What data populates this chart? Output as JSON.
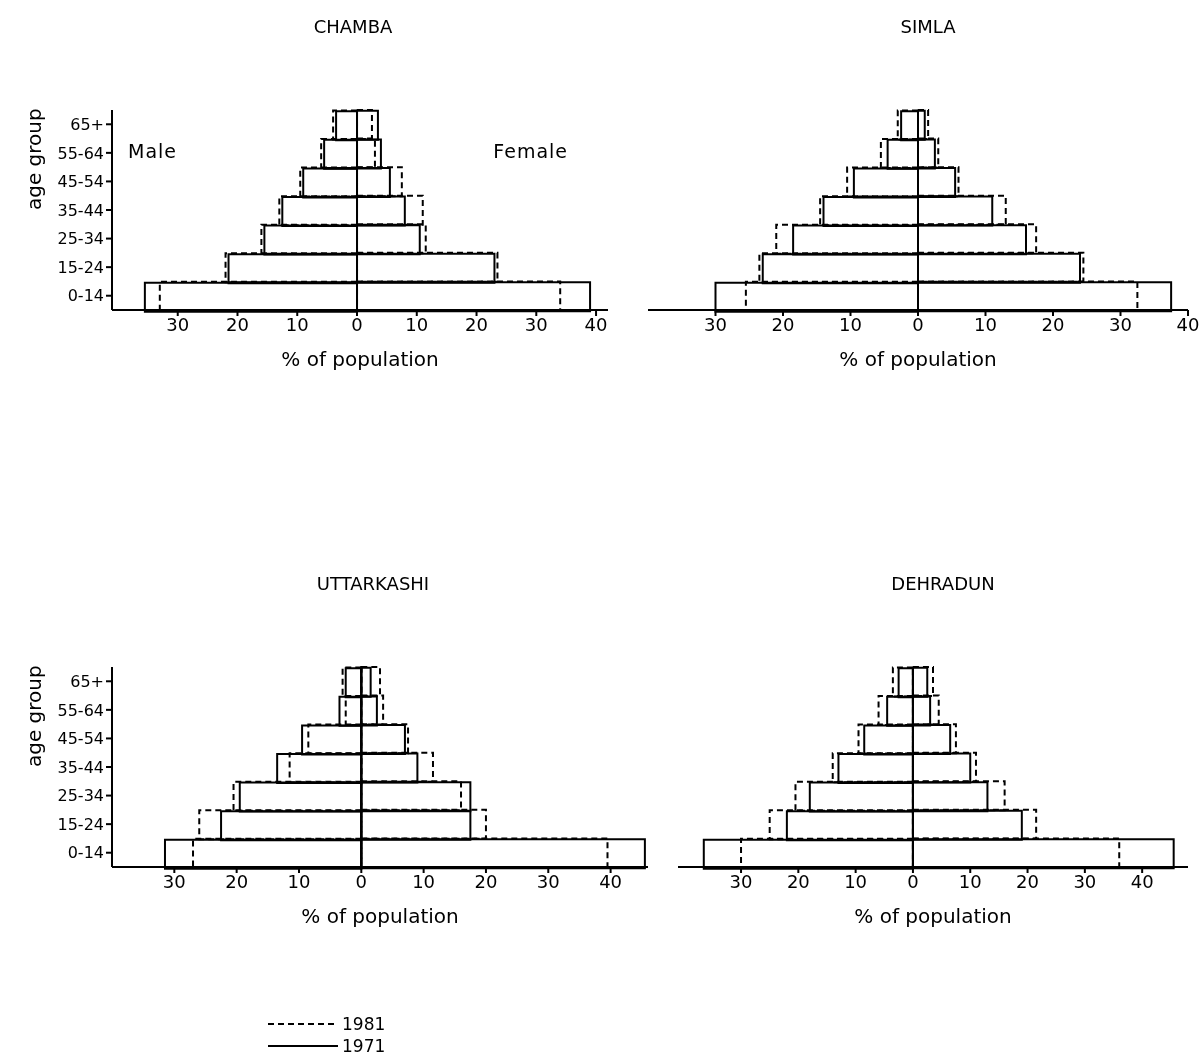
{
  "chart_data": [
    {
      "type": "bar",
      "orientation": "horizontal",
      "title": "CHAMBA",
      "xlabel": "% of population",
      "ylabel": "age group",
      "annotations": [
        "Male",
        "Female"
      ],
      "categories": [
        "65+",
        "55-64",
        "45-54",
        "35-44",
        "25-34",
        "15-24",
        "0-14"
      ],
      "xlim": [
        -41,
        42
      ],
      "xticks": [
        {
          "value": -30,
          "label": "30"
        },
        {
          "value": -20,
          "label": "20"
        },
        {
          "value": -10,
          "label": "10"
        },
        0,
        10,
        20,
        30,
        40
      ],
      "series": [
        {
          "color": "#000000",
          "line_style": "dashed",
          "values": [
            2.5,
            3,
            7.5,
            11,
            11.5,
            23.5,
            34
          ]
        },
        {
          "color": "#000000",
          "line_style": "dashed",
          "values": [
            -4,
            -6,
            -9.5,
            -13,
            -16,
            -22,
            -33
          ]
        },
        {
          "color": "#000000",
          "line_style": "solid",
          "values": [
            3.5,
            4,
            5.5,
            8,
            10.5,
            23,
            39
          ]
        },
        {
          "color": "#000000",
          "line_style": "solid",
          "values": [
            -3.5,
            -5.5,
            -9,
            -12.5,
            -15.5,
            -21.5,
            -35.5
          ]
        }
      ]
    },
    {
      "type": "bar",
      "orientation": "horizontal",
      "title": "SIMLA",
      "xlabel": "% of population",
      "tick_labels": "x",
      "categories": [
        null,
        null,
        null,
        null,
        null,
        null,
        null
      ],
      "xlim": [
        -40,
        40
      ],
      "xticks": [
        {
          "value": -30,
          "label": "30"
        },
        {
          "value": -20,
          "label": "20"
        },
        {
          "value": -10,
          "label": "10"
        },
        0,
        10,
        20,
        30,
        40
      ],
      "series": [
        {
          "color": "#000000",
          "line_style": "dashed",
          "values": [
            1.5,
            3,
            6,
            13,
            17.5,
            24.5,
            32.5
          ]
        },
        {
          "color": "#000000",
          "line_style": "dashed",
          "values": [
            -3,
            -5.5,
            -10.5,
            -14.5,
            -21,
            -23.5,
            -25.5
          ]
        },
        {
          "color": "#000000",
          "line_style": "solid",
          "values": [
            1,
            2.5,
            5.5,
            11,
            16,
            24,
            37.5
          ]
        },
        {
          "color": "#000000",
          "line_style": "solid",
          "values": [
            -2.5,
            -4.5,
            -9.5,
            -14,
            -18.5,
            -23,
            -30
          ]
        }
      ]
    },
    {
      "type": "bar",
      "orientation": "horizontal",
      "title": "UTTARKASHI",
      "xlabel": "% of population",
      "ylabel": "age group",
      "legend": "bottom",
      "categories": [
        "65+",
        "55-64",
        "45-54",
        "35-44",
        "25-34",
        "15-24",
        "0-14"
      ],
      "xlim": [
        -40,
        46
      ],
      "xticks": [
        {
          "value": -30,
          "label": "30"
        },
        {
          "value": -20,
          "label": "20"
        },
        {
          "value": -10,
          "label": "10"
        },
        0,
        10,
        20,
        30,
        40
      ],
      "series": [
        {
          "name": "1981",
          "color": "#000000",
          "line_style": "dashed",
          "values": [
            3,
            3.5,
            7.5,
            11.5,
            16,
            20,
            39.5
          ]
        },
        {
          "color": "#000000",
          "line_style": "dashed",
          "values": [
            -3,
            -2.5,
            -8.5,
            -11.5,
            -20.5,
            -26,
            -27
          ]
        },
        {
          "name": "1971",
          "color": "#000000",
          "line_style": "solid",
          "values": [
            1.5,
            2.5,
            7,
            9,
            17.5,
            17.5,
            45.5
          ]
        },
        {
          "color": "#000000",
          "line_style": "solid",
          "values": [
            -2.5,
            -3.5,
            -9.5,
            -13.5,
            -19.5,
            -22.5,
            -31.5
          ]
        }
      ]
    },
    {
      "type": "bar",
      "orientation": "horizontal",
      "title": "DEHRADUN",
      "xlabel": "% of population",
      "tick_labels": "x",
      "categories": [
        null,
        null,
        null,
        null,
        null,
        null,
        null
      ],
      "xlim": [
        -41,
        48
      ],
      "xticks": [
        {
          "value": -30,
          "label": "30"
        },
        {
          "value": -20,
          "label": "20"
        },
        {
          "value": -10,
          "label": "10"
        },
        0,
        10,
        20,
        30,
        40
      ],
      "series": [
        {
          "color": "#000000",
          "line_style": "dashed",
          "values": [
            3.5,
            4.5,
            7.5,
            11,
            16,
            21.5,
            36
          ]
        },
        {
          "color": "#000000",
          "line_style": "dashed",
          "values": [
            -3.5,
            -6,
            -9.5,
            -14,
            -20.5,
            -25,
            -30
          ]
        },
        {
          "color": "#000000",
          "line_style": "solid",
          "values": [
            2.5,
            3,
            6.5,
            10,
            13,
            19,
            45.5
          ]
        },
        {
          "color": "#000000",
          "line_style": "solid",
          "values": [
            -2.5,
            -4.5,
            -8.5,
            -13,
            -18,
            -22,
            -36.5
          ]
        }
      ]
    }
  ]
}
